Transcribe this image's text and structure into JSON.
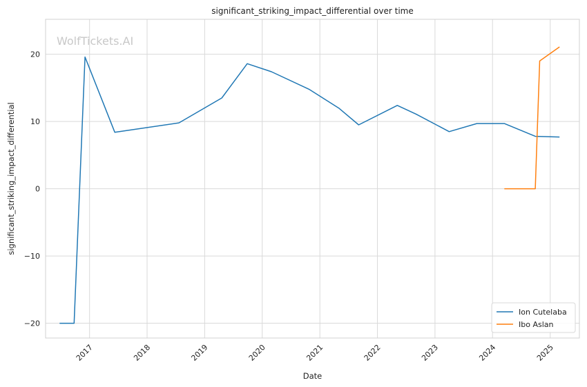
{
  "chart_data": {
    "type": "line",
    "title": "significant_striking_impact_differential over time",
    "xlabel": "Date",
    "ylabel": "significant_striking_impact_differential",
    "watermark": "WolfTickets.AI",
    "x_ticks": [
      "2017",
      "2018",
      "2019",
      "2020",
      "2021",
      "2022",
      "2023",
      "2024",
      "2025"
    ],
    "y_ticks": [
      -20,
      -10,
      0,
      10,
      20
    ],
    "xlim": [
      "2016-03-28",
      "2025-07-05"
    ],
    "ylim": [
      -22.2,
      25.2
    ],
    "grid": true,
    "legend_position": "lower-right",
    "series": [
      {
        "name": "Ion Cutelaba",
        "color": "#1f77b4",
        "points": [
          [
            "2016-06-25",
            -20.0
          ],
          [
            "2016-09-25",
            -20.0
          ],
          [
            "2016-12-03",
            19.6
          ],
          [
            "2017-06-10",
            8.4
          ],
          [
            "2018-07-22",
            9.8
          ],
          [
            "2019-04-20",
            13.5
          ],
          [
            "2019-09-28",
            18.6
          ],
          [
            "2020-02-29",
            17.4
          ],
          [
            "2020-10-24",
            14.8
          ],
          [
            "2021-05-01",
            12.0
          ],
          [
            "2021-09-04",
            9.5
          ],
          [
            "2022-05-07",
            12.4
          ],
          [
            "2022-09-03",
            11.1
          ],
          [
            "2023-04-01",
            8.5
          ],
          [
            "2023-09-23",
            9.7
          ],
          [
            "2024-03-16",
            9.7
          ],
          [
            "2024-09-28",
            7.8
          ],
          [
            "2025-03-01",
            7.7
          ]
        ]
      },
      {
        "name": "Ibo Aslan",
        "color": "#ff7f0e",
        "points": [
          [
            "2024-03-16",
            0.0
          ],
          [
            "2024-09-28",
            0.0
          ],
          [
            "2024-10-26",
            19.0
          ],
          [
            "2025-03-01",
            21.1
          ]
        ]
      }
    ]
  }
}
